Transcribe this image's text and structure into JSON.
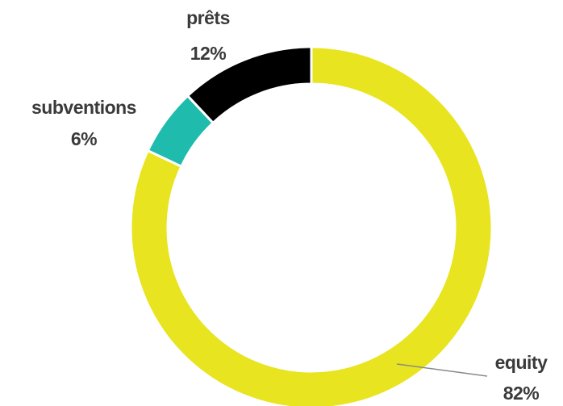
{
  "chart_data": {
    "type": "pie",
    "variant": "donut",
    "slices": [
      {
        "label": "equity",
        "value": 82,
        "value_label": "82%",
        "color": "#e8e41f"
      },
      {
        "label": "subventions",
        "value": 6,
        "value_label": "6%",
        "color": "#1fbcae"
      },
      {
        "label": "prêts",
        "value": 12,
        "value_label": "12%",
        "color": "#000000"
      }
    ],
    "legend": "none"
  }
}
